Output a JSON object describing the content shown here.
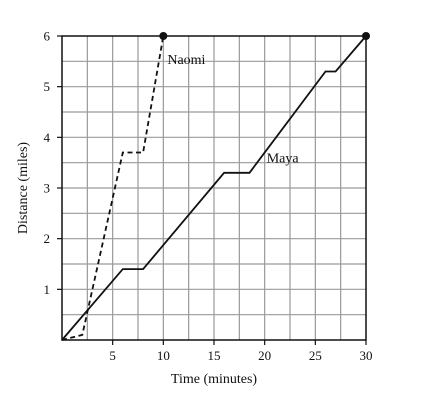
{
  "chart_data": {
    "type": "line",
    "title": "",
    "xlabel": "Time (minutes)",
    "ylabel": "Distance (miles)",
    "xlim": [
      0,
      30
    ],
    "ylim": [
      0,
      6
    ],
    "xticks": [
      5,
      10,
      15,
      20,
      25,
      30
    ],
    "yticks": [
      1,
      2,
      3,
      4,
      5,
      6
    ],
    "grid": true,
    "grid_step_x": 2.5,
    "grid_step_y": 0.5,
    "series": [
      {
        "name": "Naomi",
        "style": "dashed",
        "color": "#111111",
        "end_marker": true,
        "points": [
          [
            0,
            0
          ],
          [
            2,
            0.1
          ],
          [
            6,
            3.7
          ],
          [
            8,
            3.7
          ],
          [
            10,
            6
          ]
        ]
      },
      {
        "name": "Maya",
        "style": "solid",
        "color": "#111111",
        "end_marker": true,
        "points": [
          [
            0,
            0
          ],
          [
            6,
            1.4
          ],
          [
            8,
            1.4
          ],
          [
            16,
            3.3
          ],
          [
            18.5,
            3.3
          ],
          [
            26,
            5.3
          ],
          [
            27,
            5.3
          ],
          [
            30,
            6
          ]
        ]
      }
    ]
  }
}
